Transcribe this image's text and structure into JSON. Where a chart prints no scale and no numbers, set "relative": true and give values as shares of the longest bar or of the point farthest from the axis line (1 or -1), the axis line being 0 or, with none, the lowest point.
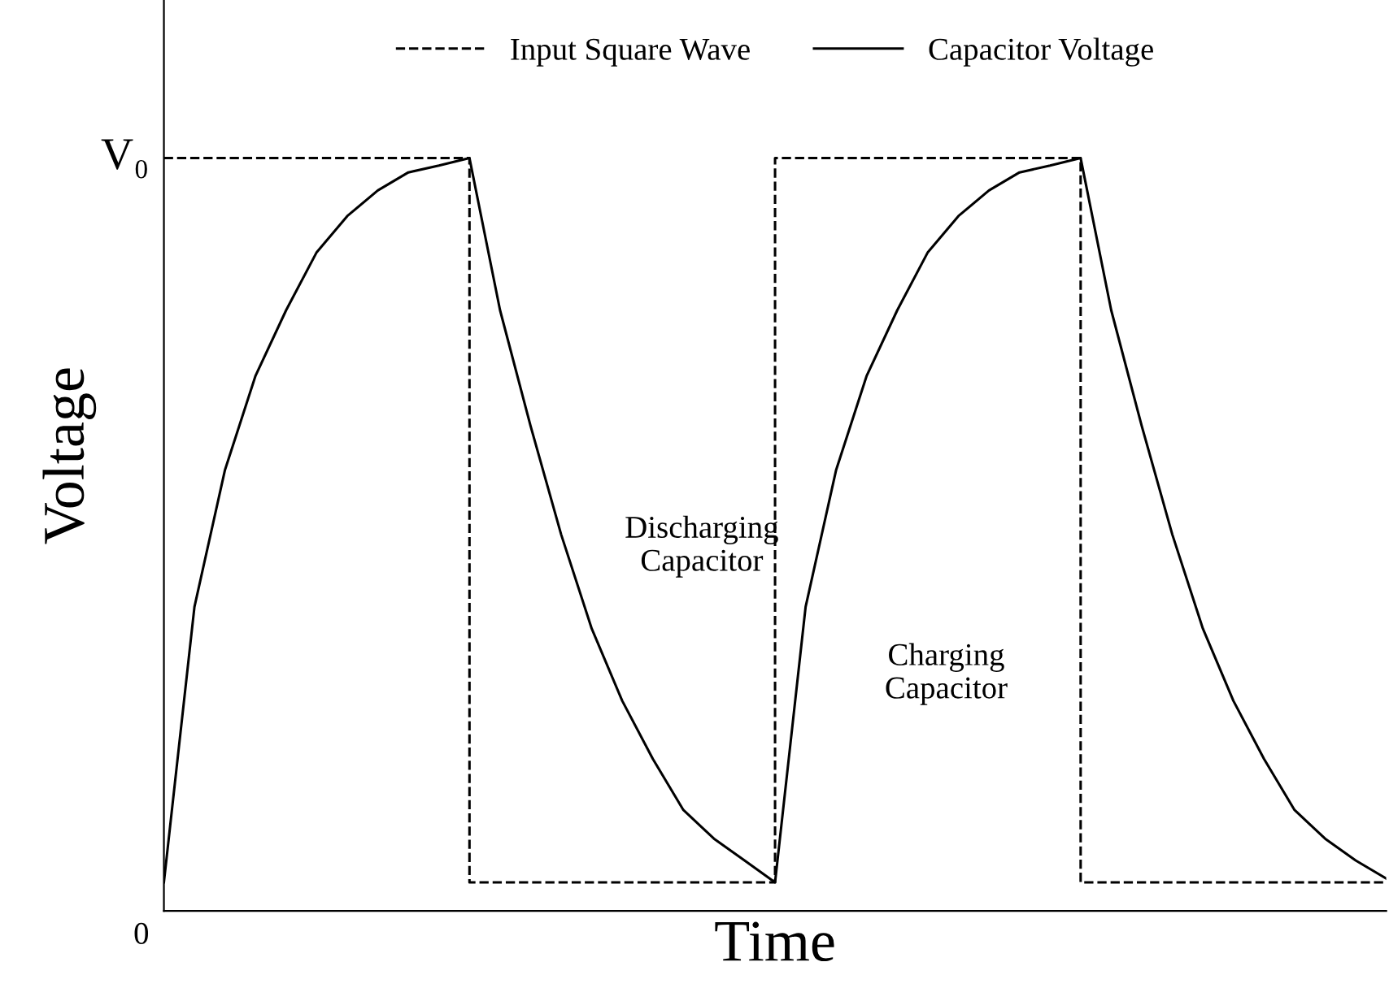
{
  "chart_data": {
    "type": "line",
    "xlabel": "Time",
    "ylabel": "Voltage",
    "relative": true,
    "legend": "top",
    "marker": "none",
    "categories": [
      null,
      null,
      null,
      null,
      null,
      null,
      null,
      null,
      null,
      null,
      null,
      null,
      null,
      null,
      null,
      null,
      null,
      null,
      null,
      null,
      null,
      null,
      null,
      null,
      null,
      null,
      null,
      null,
      null,
      null,
      null,
      null,
      null,
      null,
      null,
      null,
      null,
      null,
      null,
      null,
      null
    ],
    "series": [
      {
        "name": "Input Square Wave",
        "type": "step",
        "color": "#000000",
        "line_style": "dashed",
        "values": [
          1,
          1,
          1,
          1,
          1,
          1,
          1,
          1,
          1,
          1,
          0.038,
          0.038,
          0.038,
          0.038,
          0.038,
          0.038,
          0.038,
          0.038,
          0.038,
          0.038,
          1,
          1,
          1,
          1,
          1,
          1,
          1,
          1,
          1,
          1,
          0.038,
          0.038,
          0.038,
          0.038,
          0.038,
          0.038,
          0.038,
          0.038,
          0.038,
          0.038,
          0.038
        ]
      },
      {
        "name": "Capacitor Voltage",
        "color": "#000000",
        "line_style": "solid",
        "values": [
          0.038,
          0.404,
          0.586,
          0.711,
          0.798,
          0.875,
          0.923,
          0.957,
          0.981,
          0.99,
          1,
          0.798,
          0.644,
          0.5,
          0.375,
          0.279,
          0.202,
          0.134,
          0.096,
          0.067,
          0.038,
          0.404,
          0.586,
          0.711,
          0.798,
          0.875,
          0.923,
          0.957,
          0.981,
          0.99,
          1,
          0.798,
          0.644,
          0.5,
          0.375,
          0.279,
          0.202,
          0.134,
          0.096,
          0.067,
          0.043
        ]
      }
    ],
    "annotations": [
      "Discharging\nCapacitor",
      "Charging\nCapacitor",
      "V₀",
      "0"
    ]
  }
}
